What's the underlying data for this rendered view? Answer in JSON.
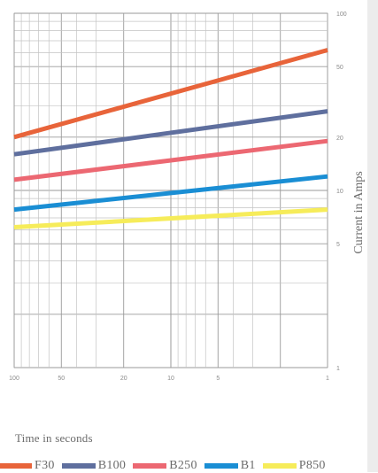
{
  "chart_data": {
    "type": "line",
    "xlabel": "Time in seconds",
    "ylabel": "Current in Amps",
    "x_scale": "log-reversed",
    "y_scale": "log",
    "xlim": [
      100,
      1
    ],
    "ylim": [
      1,
      100
    ],
    "x_ticks": [
      100,
      50,
      20,
      10,
      5,
      1
    ],
    "y_ticks": [
      100,
      50,
      20,
      10,
      5,
      1
    ],
    "grid": true,
    "legend_position": "bottom",
    "series": [
      {
        "name": "F30",
        "color": "#e8643a",
        "x": [
          100,
          1
        ],
        "y": [
          20,
          62
        ]
      },
      {
        "name": "B100",
        "color": "#5f6f9e",
        "x": [
          100,
          1
        ],
        "y": [
          16,
          28
        ]
      },
      {
        "name": "B250",
        "color": "#ec6872",
        "x": [
          100,
          1
        ],
        "y": [
          11.5,
          19
        ]
      },
      {
        "name": "B1",
        "color": "#1a8ed4",
        "x": [
          100,
          1
        ],
        "y": [
          7.8,
          12
        ]
      },
      {
        "name": "P850",
        "color": "#f6ec5a",
        "x": [
          100,
          1
        ],
        "y": [
          6.2,
          7.8
        ]
      }
    ]
  }
}
